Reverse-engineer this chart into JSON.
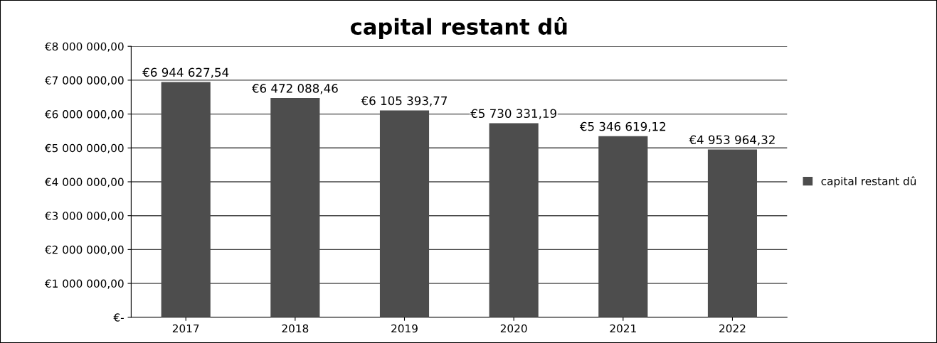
{
  "chart_data": {
    "type": "bar",
    "title": "capital restant dû",
    "categories": [
      "2017",
      "2018",
      "2019",
      "2020",
      "2021",
      "2022"
    ],
    "series": [
      {
        "name": "capital restant dû",
        "color": "#4d4d4d",
        "values": [
          6944627.54,
          6472088.46,
          6105393.77,
          5730331.19,
          5346619.12,
          4953964.32
        ],
        "value_labels": [
          "€6 944 627,54",
          "€6 472 088,46",
          "€6 105 393,77",
          "€5 730 331,19",
          "€5 346 619,12",
          "€4 953 964,32"
        ]
      }
    ],
    "ylim": [
      0,
      8000000
    ],
    "yticks": [
      {
        "value": 0,
        "label": "€-"
      },
      {
        "value": 1000000,
        "label": "€1 000 000,00"
      },
      {
        "value": 2000000,
        "label": "€2 000 000,00"
      },
      {
        "value": 3000000,
        "label": "€3 000 000,00"
      },
      {
        "value": 4000000,
        "label": "€4 000 000,00"
      },
      {
        "value": 5000000,
        "label": "€5 000 000,00"
      },
      {
        "value": 6000000,
        "label": "€6 000 000,00"
      },
      {
        "value": 7000000,
        "label": "€7 000 000,00"
      },
      {
        "value": 8000000,
        "label": "€8 000 000,00"
      }
    ],
    "grid": "y",
    "legend": "right"
  }
}
